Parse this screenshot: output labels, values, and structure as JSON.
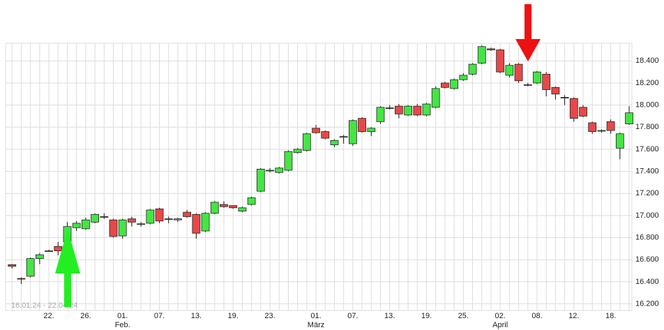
{
  "chart_data": {
    "type": "candlestick",
    "range_label": "16.01.24 - 22.04.24",
    "categories": [
      null,
      null,
      null,
      null,
      "22.",
      null,
      null,
      null,
      "26.",
      null,
      null,
      null,
      "01.",
      null,
      null,
      null,
      "07.",
      null,
      null,
      null,
      "13.",
      null,
      null,
      null,
      "19.",
      null,
      null,
      null,
      "23.",
      null,
      null,
      null,
      null,
      "01.",
      null,
      null,
      null,
      "07.",
      null,
      null,
      null,
      "13.",
      null,
      null,
      null,
      "19.",
      null,
      null,
      null,
      "25.",
      null,
      null,
      null,
      "02.",
      null,
      null,
      null,
      "08.",
      null,
      null,
      null,
      "12.",
      null,
      null,
      null,
      "18.",
      null,
      null
    ],
    "month_labels": [
      null,
      null,
      null,
      null,
      null,
      null,
      null,
      null,
      null,
      null,
      null,
      null,
      "Feb.",
      null,
      null,
      null,
      null,
      null,
      null,
      null,
      null,
      null,
      null,
      null,
      null,
      null,
      null,
      null,
      null,
      null,
      null,
      null,
      null,
      "März",
      null,
      null,
      null,
      null,
      null,
      null,
      null,
      null,
      null,
      null,
      null,
      null,
      null,
      null,
      null,
      null,
      null,
      null,
      null,
      "April",
      null,
      null,
      null,
      null,
      null,
      null,
      null,
      null,
      null,
      null,
      null,
      null,
      null,
      null
    ],
    "open": [
      16555,
      16430,
      16450,
      16610,
      16675,
      16720,
      16760,
      16890,
      16880,
      16940,
      16990,
      16960,
      16815,
      16970,
      16920,
      16930,
      17060,
      16970,
      16960,
      17030,
      17010,
      16860,
      17020,
      17100,
      17090,
      17040,
      17100,
      17220,
      17410,
      17390,
      17410,
      17570,
      17590,
      17790,
      17760,
      17640,
      17710,
      17650,
      17880,
      17760,
      17850,
      17975,
      17990,
      17910,
      17990,
      17910,
      17980,
      18200,
      18150,
      18230,
      18280,
      18380,
      18510,
      18500,
      18270,
      18370,
      18185,
      18200,
      18280,
      18160,
      18070,
      18060,
      17980,
      17840,
      17770,
      17850,
      17610,
      17830
    ],
    "high": [
      16560,
      16440,
      16620,
      16660,
      16690,
      16760,
      16940,
      16950,
      16980,
      17020,
      17020,
      16970,
      16970,
      16990,
      16940,
      17060,
      17070,
      16990,
      16980,
      17050,
      17020,
      17030,
      17130,
      17130,
      17090,
      17080,
      17170,
      17430,
      17430,
      17440,
      17590,
      17610,
      17750,
      17820,
      17770,
      17690,
      17730,
      17870,
      17890,
      17800,
      17990,
      18000,
      18010,
      18000,
      18010,
      18020,
      18170,
      18210,
      18240,
      18290,
      18380,
      18540,
      18520,
      18510,
      18380,
      18380,
      18200,
      18310,
      18300,
      18170,
      18090,
      18070,
      18000,
      17850,
      17780,
      17870,
      17750,
      17990
    ],
    "low": [
      16520,
      16380,
      16440,
      16560,
      16670,
      16640,
      16750,
      16860,
      16870,
      16930,
      16970,
      16800,
      16790,
      16900,
      16900,
      16920,
      16930,
      16930,
      16940,
      16980,
      16790,
      16850,
      17010,
      17070,
      17060,
      17030,
      17090,
      17210,
      17390,
      17380,
      17400,
      17560,
      17580,
      17740,
      17690,
      17620,
      17650,
      17630,
      17750,
      17720,
      17830,
      17960,
      17880,
      17900,
      17900,
      17900,
      17970,
      18150,
      18140,
      18220,
      18270,
      18370,
      18490,
      18290,
      18250,
      18200,
      18170,
      18190,
      18080,
      18050,
      18000,
      17850,
      17890,
      17740,
      17750,
      17740,
      17510,
      17820
    ],
    "close": [
      16540,
      16425,
      16610,
      16645,
      16680,
      16680,
      16900,
      16930,
      16960,
      17010,
      16985,
      16810,
      16960,
      16940,
      16925,
      17050,
      16950,
      16965,
      16970,
      16990,
      16840,
      17020,
      17120,
      17080,
      17070,
      17070,
      17160,
      17420,
      17410,
      17430,
      17580,
      17600,
      17740,
      17750,
      17700,
      17680,
      17715,
      17860,
      17760,
      17790,
      17980,
      17975,
      17920,
      17990,
      17910,
      18010,
      18150,
      18160,
      18230,
      18270,
      18370,
      18530,
      18500,
      18300,
      18360,
      18220,
      18180,
      18300,
      18140,
      18100,
      18065,
      17880,
      17900,
      17760,
      17770,
      17770,
      17740,
      17930
    ],
    "up_color": "#44e544",
    "down_color": "#e84848",
    "ylim": [
      16140,
      18560
    ],
    "yticks": [
      {
        "value": 16200,
        "label": "16.200"
      },
      {
        "value": 16400,
        "label": "16.400"
      },
      {
        "value": 16600,
        "label": "16.600"
      },
      {
        "value": 16800,
        "label": "16.800"
      },
      {
        "value": 17000,
        "label": "17.000"
      },
      {
        "value": 17200,
        "label": "17.200"
      },
      {
        "value": 17400,
        "label": "17.400"
      },
      {
        "value": 17600,
        "label": "17.600"
      },
      {
        "value": 17800,
        "label": "17.800"
      },
      {
        "value": 18000,
        "label": "18.000"
      },
      {
        "value": 18200,
        "label": "18.200"
      },
      {
        "value": 18400,
        "label": "18.400"
      }
    ],
    "grid": true
  }
}
